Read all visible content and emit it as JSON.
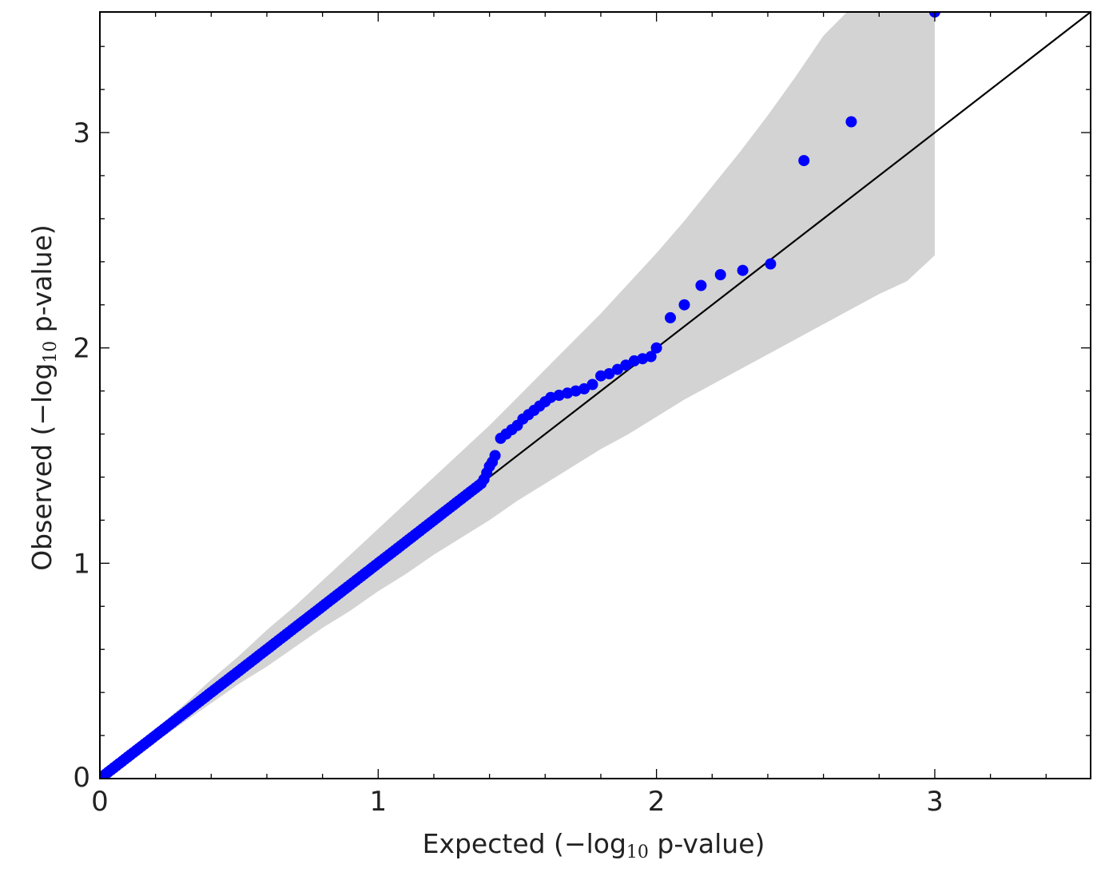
{
  "chart_data": {
    "type": "scatter",
    "title": "",
    "xlabel": {
      "before": "Expected (",
      "minus": "−",
      "log": "log",
      "sub": "10",
      "after": " p-value)"
    },
    "ylabel": {
      "before": "Observed (",
      "minus": "−",
      "log": "log",
      "sub": "10",
      "after": " p-value)"
    },
    "xlim": [
      0,
      3.56
    ],
    "ylim": [
      0,
      3.56
    ],
    "xticks": [
      "0",
      "1",
      "2",
      "3"
    ],
    "yticks": [
      "0",
      "1",
      "2",
      "3"
    ],
    "grid": false,
    "legend": "none",
    "colors": {
      "points": "#0000ff",
      "reference_line": "#000000",
      "band": "#d3d3d3",
      "frame": "#000000"
    },
    "reference_line": {
      "x": [
        0,
        3.56
      ],
      "y": [
        0,
        3.56
      ]
    },
    "confidence_band": {
      "x": [
        0,
        0.1,
        0.2,
        0.3,
        0.4,
        0.5,
        0.6,
        0.7,
        0.8,
        0.9,
        1.0,
        1.1,
        1.2,
        1.3,
        1.4,
        1.5,
        1.6,
        1.7,
        1.8,
        1.9,
        2.0,
        2.1,
        2.2,
        2.3,
        2.4,
        2.5,
        2.6,
        2.7,
        2.8,
        2.9,
        3.0
      ],
      "upper": [
        0.01,
        0.12,
        0.23,
        0.34,
        0.46,
        0.57,
        0.69,
        0.8,
        0.92,
        1.04,
        1.16,
        1.28,
        1.4,
        1.52,
        1.64,
        1.77,
        1.9,
        2.03,
        2.16,
        2.3,
        2.44,
        2.59,
        2.75,
        2.91,
        3.08,
        3.26,
        3.45,
        3.58,
        3.58,
        3.58,
        3.58
      ],
      "lower": [
        0,
        0.08,
        0.17,
        0.26,
        0.35,
        0.44,
        0.52,
        0.61,
        0.7,
        0.78,
        0.87,
        0.95,
        1.04,
        1.12,
        1.2,
        1.29,
        1.37,
        1.45,
        1.53,
        1.6,
        1.68,
        1.76,
        1.83,
        1.9,
        1.97,
        2.04,
        2.11,
        2.18,
        2.25,
        2.31,
        2.43
      ]
    },
    "points": {
      "x": [
        0.01,
        0.02,
        0.03,
        0.04,
        0.05,
        0.06,
        0.07,
        0.08,
        0.09,
        0.1,
        0.11,
        0.12,
        0.13,
        0.14,
        0.15,
        0.16,
        0.17,
        0.18,
        0.19,
        0.2,
        0.21,
        0.22,
        0.23,
        0.24,
        0.25,
        0.26,
        0.27,
        0.28,
        0.29,
        0.3,
        0.31,
        0.32,
        0.33,
        0.34,
        0.35,
        0.36,
        0.37,
        0.38,
        0.39,
        0.4,
        0.41,
        0.42,
        0.43,
        0.44,
        0.45,
        0.46,
        0.47,
        0.48,
        0.49,
        0.5,
        0.51,
        0.52,
        0.53,
        0.54,
        0.55,
        0.56,
        0.57,
        0.58,
        0.59,
        0.6,
        0.61,
        0.62,
        0.63,
        0.64,
        0.65,
        0.66,
        0.67,
        0.68,
        0.69,
        0.7,
        0.71,
        0.72,
        0.73,
        0.74,
        0.75,
        0.76,
        0.77,
        0.78,
        0.79,
        0.8,
        0.81,
        0.82,
        0.83,
        0.84,
        0.85,
        0.86,
        0.87,
        0.88,
        0.89,
        0.9,
        0.91,
        0.92,
        0.93,
        0.94,
        0.95,
        0.96,
        0.97,
        0.98,
        0.99,
        1.0,
        1.01,
        1.02,
        1.03,
        1.04,
        1.05,
        1.06,
        1.07,
        1.08,
        1.09,
        1.1,
        1.11,
        1.12,
        1.13,
        1.14,
        1.15,
        1.16,
        1.17,
        1.18,
        1.19,
        1.2,
        1.21,
        1.22,
        1.23,
        1.24,
        1.25,
        1.26,
        1.27,
        1.28,
        1.29,
        1.3,
        1.31,
        1.32,
        1.33,
        1.34,
        1.35,
        1.36,
        1.37,
        1.38,
        1.39,
        1.4,
        1.41,
        1.42,
        1.44,
        1.46,
        1.48,
        1.5,
        1.52,
        1.54,
        1.56,
        1.58,
        1.6,
        1.62,
        1.65,
        1.68,
        1.71,
        1.74,
        1.77,
        1.8,
        1.83,
        1.86,
        1.89,
        1.92,
        1.95,
        1.98,
        2.0,
        2.05,
        2.1,
        2.16,
        2.23,
        2.31,
        2.41,
        2.53,
        2.7,
        3.0
      ],
      "y": [
        0.01,
        0.02,
        0.03,
        0.04,
        0.05,
        0.06,
        0.07,
        0.08,
        0.09,
        0.1,
        0.11,
        0.12,
        0.13,
        0.14,
        0.15,
        0.16,
        0.17,
        0.18,
        0.19,
        0.2,
        0.21,
        0.22,
        0.23,
        0.24,
        0.25,
        0.26,
        0.27,
        0.28,
        0.29,
        0.3,
        0.31,
        0.32,
        0.33,
        0.34,
        0.35,
        0.36,
        0.37,
        0.38,
        0.39,
        0.4,
        0.41,
        0.42,
        0.43,
        0.44,
        0.45,
        0.46,
        0.47,
        0.48,
        0.49,
        0.5,
        0.51,
        0.52,
        0.53,
        0.54,
        0.55,
        0.56,
        0.57,
        0.58,
        0.59,
        0.6,
        0.61,
        0.62,
        0.63,
        0.64,
        0.65,
        0.66,
        0.67,
        0.68,
        0.69,
        0.7,
        0.71,
        0.72,
        0.73,
        0.74,
        0.75,
        0.76,
        0.77,
        0.78,
        0.79,
        0.8,
        0.81,
        0.82,
        0.83,
        0.84,
        0.85,
        0.86,
        0.87,
        0.88,
        0.89,
        0.9,
        0.91,
        0.92,
        0.93,
        0.94,
        0.95,
        0.96,
        0.97,
        0.98,
        0.99,
        1.0,
        1.01,
        1.02,
        1.03,
        1.04,
        1.05,
        1.06,
        1.07,
        1.08,
        1.09,
        1.1,
        1.11,
        1.12,
        1.13,
        1.14,
        1.15,
        1.16,
        1.17,
        1.18,
        1.19,
        1.2,
        1.21,
        1.22,
        1.23,
        1.24,
        1.25,
        1.26,
        1.27,
        1.28,
        1.29,
        1.3,
        1.31,
        1.32,
        1.33,
        1.34,
        1.35,
        1.36,
        1.37,
        1.39,
        1.42,
        1.45,
        1.47,
        1.5,
        1.58,
        1.6,
        1.62,
        1.64,
        1.67,
        1.69,
        1.71,
        1.73,
        1.75,
        1.77,
        1.78,
        1.79,
        1.8,
        1.81,
        1.83,
        1.87,
        1.88,
        1.9,
        1.92,
        1.94,
        1.95,
        1.96,
        2.0,
        2.14,
        2.2,
        2.29,
        2.34,
        2.36,
        2.39,
        2.87,
        3.05,
        3.56
      ]
    }
  }
}
